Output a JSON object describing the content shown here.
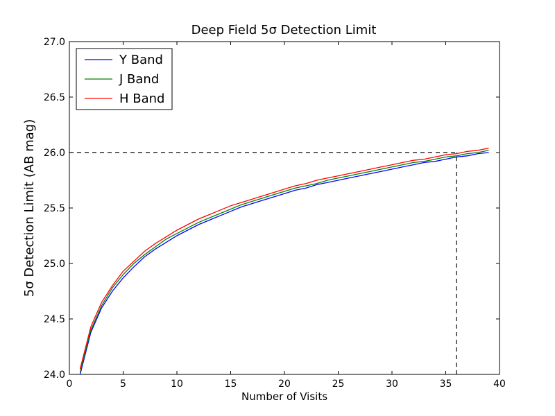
{
  "chart_data": {
    "type": "line",
    "title": "Deep Field 5σ Detection Limit",
    "xlabel": "Number of Visits",
    "ylabel": "5σ Detection Limit (AB mag)",
    "xlim": [
      0,
      40
    ],
    "ylim": [
      24.0,
      27.0
    ],
    "xticks": [
      "0",
      "5",
      "10",
      "15",
      "20",
      "25",
      "30",
      "35",
      "40"
    ],
    "yticks": [
      "24.0",
      "24.5",
      "25.0",
      "25.5",
      "26.0",
      "26.5",
      "27.0"
    ],
    "grid": false,
    "legend_position": "top-left",
    "series": [
      {
        "name": "Y Band",
        "color": "#0000ff",
        "x": [
          1,
          2,
          3,
          4,
          5,
          6,
          7,
          8,
          9,
          10,
          11,
          12,
          13,
          14,
          15,
          16,
          17,
          18,
          19,
          20,
          21,
          22,
          23,
          24,
          25,
          26,
          27,
          28,
          29,
          30,
          31,
          32,
          33,
          34,
          35,
          36,
          37,
          38,
          39
        ],
        "y": [
          24.0,
          24.38,
          24.6,
          24.75,
          24.87,
          24.97,
          25.06,
          25.13,
          25.19,
          25.25,
          25.3,
          25.35,
          25.39,
          25.43,
          25.47,
          25.51,
          25.54,
          25.57,
          25.6,
          25.63,
          25.66,
          25.68,
          25.71,
          25.73,
          25.75,
          25.77,
          25.79,
          25.81,
          25.83,
          25.85,
          25.87,
          25.89,
          25.91,
          25.92,
          25.94,
          25.96,
          25.97,
          25.99,
          26.0
        ]
      },
      {
        "name": "J Band",
        "color": "#008000",
        "x": [
          1,
          2,
          3,
          4,
          5,
          6,
          7,
          8,
          9,
          10,
          11,
          12,
          13,
          14,
          15,
          16,
          17,
          18,
          19,
          20,
          21,
          22,
          23,
          24,
          25,
          26,
          27,
          28,
          29,
          30,
          31,
          32,
          33,
          34,
          35,
          36,
          37,
          38,
          39
        ],
        "y": [
          24.02,
          24.4,
          24.62,
          24.78,
          24.9,
          25.0,
          25.08,
          25.15,
          25.22,
          25.27,
          25.32,
          25.37,
          25.41,
          25.45,
          25.49,
          25.53,
          25.56,
          25.59,
          25.62,
          25.65,
          25.68,
          25.7,
          25.72,
          25.75,
          25.77,
          25.79,
          25.81,
          25.83,
          25.85,
          25.87,
          25.89,
          25.91,
          25.92,
          25.94,
          25.96,
          25.97,
          25.99,
          26.0,
          26.02
        ]
      },
      {
        "name": "H Band",
        "color": "#ff0000",
        "x": [
          1,
          2,
          3,
          4,
          5,
          6,
          7,
          8,
          9,
          10,
          11,
          12,
          13,
          14,
          15,
          16,
          17,
          18,
          19,
          20,
          21,
          22,
          23,
          24,
          25,
          26,
          27,
          28,
          29,
          30,
          31,
          32,
          33,
          34,
          35,
          36,
          37,
          38,
          39
        ],
        "y": [
          24.05,
          24.43,
          24.65,
          24.8,
          24.93,
          25.02,
          25.11,
          25.18,
          25.24,
          25.3,
          25.35,
          25.4,
          25.44,
          25.48,
          25.52,
          25.55,
          25.58,
          25.61,
          25.64,
          25.67,
          25.7,
          25.72,
          25.75,
          25.77,
          25.79,
          25.81,
          25.83,
          25.85,
          25.87,
          25.89,
          25.91,
          25.93,
          25.94,
          25.96,
          25.98,
          25.99,
          26.01,
          26.02,
          26.04
        ]
      }
    ],
    "reference_lines": [
      {
        "kind": "horizontal",
        "y": 26.0,
        "x_from": 0,
        "x_to": 36,
        "style": "dashed",
        "color": "#000000"
      },
      {
        "kind": "vertical",
        "x": 36,
        "y_from": 24.0,
        "y_to": 26.0,
        "style": "dashed",
        "color": "#000000"
      }
    ]
  }
}
